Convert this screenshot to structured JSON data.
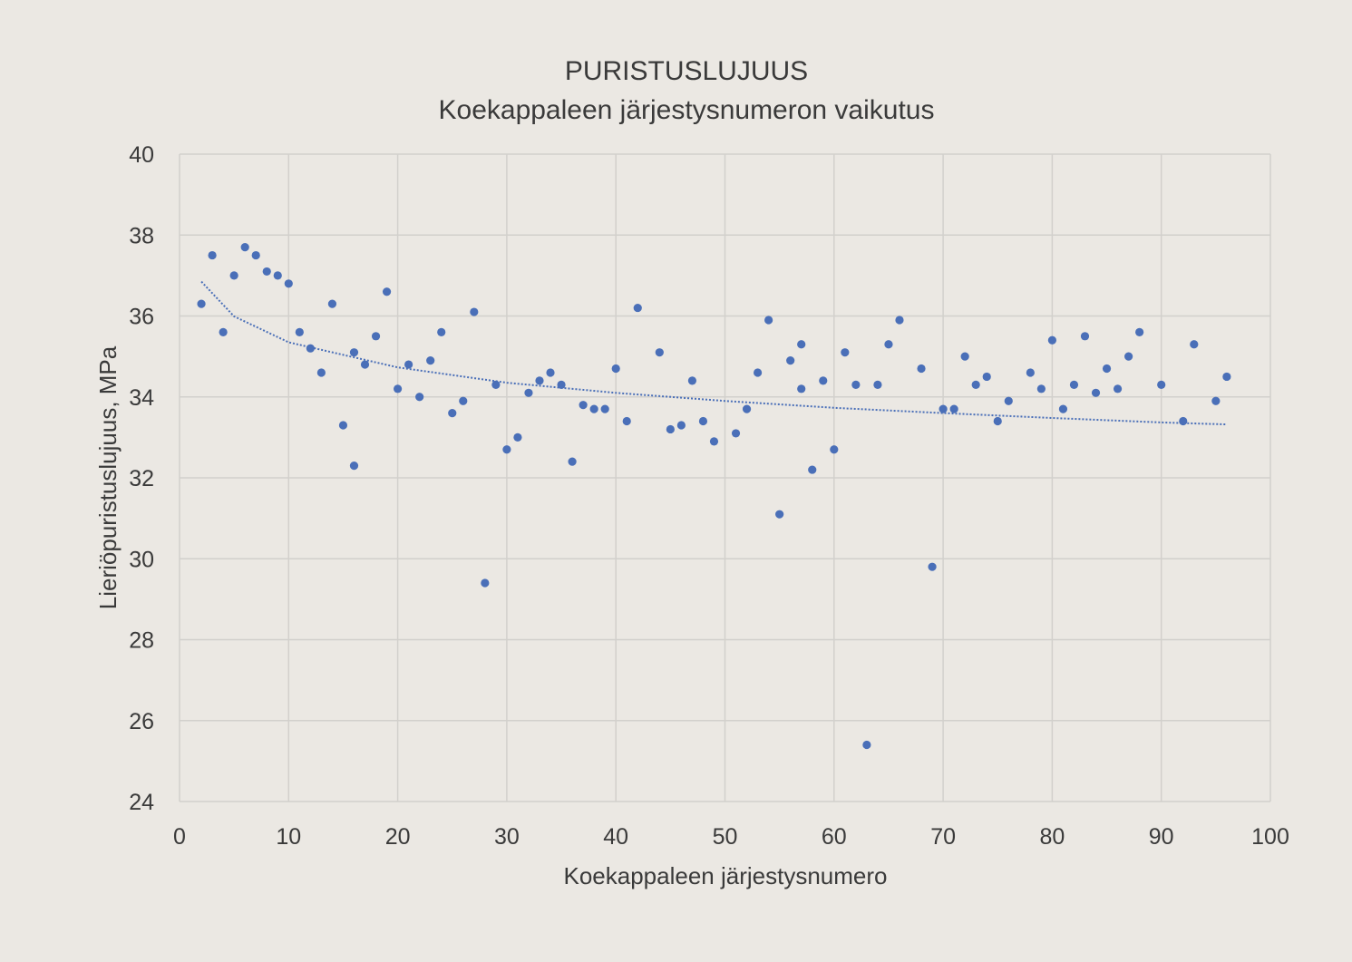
{
  "colors": {
    "background": "#ebe8e3",
    "plot_area": "#ebe8e3",
    "grid": "#d2d0cc",
    "axis_text": "#3a3a3a",
    "marker": "#4a6fb8",
    "trendline": "#4a6fb8"
  },
  "chart_data": {
    "type": "scatter",
    "title": "PURISTUSLUJUUS",
    "subtitle": "Koekappaleen järjestysnumeron vaikutus",
    "xlabel": "Koekappaleen järjestysnumero",
    "ylabel": "Lieriöpuristuslujuus, MPa",
    "xlim": [
      0,
      100
    ],
    "ylim": [
      24,
      40
    ],
    "xticks": [
      0,
      10,
      20,
      30,
      40,
      50,
      60,
      70,
      80,
      90,
      100
    ],
    "yticks": [
      24,
      26,
      28,
      30,
      32,
      34,
      36,
      38,
      40
    ],
    "grid": true,
    "legend": "none",
    "series": [
      {
        "marker": "circle",
        "points": [
          [
            2,
            36.3
          ],
          [
            3,
            37.5
          ],
          [
            4,
            35.6
          ],
          [
            5,
            37.0
          ],
          [
            6,
            37.7
          ],
          [
            7,
            37.5
          ],
          [
            8,
            37.1
          ],
          [
            9,
            37.0
          ],
          [
            10,
            36.8
          ],
          [
            11,
            35.6
          ],
          [
            12,
            35.2
          ],
          [
            13,
            34.6
          ],
          [
            14,
            36.3
          ],
          [
            15,
            33.3
          ],
          [
            16,
            35.1
          ],
          [
            16,
            32.3
          ],
          [
            17,
            34.8
          ],
          [
            18,
            35.5
          ],
          [
            19,
            36.6
          ],
          [
            20,
            34.2
          ],
          [
            21,
            34.8
          ],
          [
            22,
            34.0
          ],
          [
            23,
            34.9
          ],
          [
            24,
            35.6
          ],
          [
            25,
            33.6
          ],
          [
            26,
            33.9
          ],
          [
            27,
            36.1
          ],
          [
            28,
            29.4
          ],
          [
            29,
            34.3
          ],
          [
            30,
            32.7
          ],
          [
            31,
            33.0
          ],
          [
            32,
            34.1
          ],
          [
            33,
            34.4
          ],
          [
            34,
            34.6
          ],
          [
            35,
            34.3
          ],
          [
            36,
            32.4
          ],
          [
            37,
            33.8
          ],
          [
            38,
            33.7
          ],
          [
            39,
            33.7
          ],
          [
            40,
            34.7
          ],
          [
            41,
            33.4
          ],
          [
            42,
            36.2
          ],
          [
            44,
            35.1
          ],
          [
            45,
            33.2
          ],
          [
            46,
            33.3
          ],
          [
            47,
            34.4
          ],
          [
            48,
            33.4
          ],
          [
            49,
            32.9
          ],
          [
            51,
            33.1
          ],
          [
            52,
            33.7
          ],
          [
            53,
            34.6
          ],
          [
            54,
            35.9
          ],
          [
            55,
            31.1
          ],
          [
            56,
            34.9
          ],
          [
            57,
            35.3
          ],
          [
            57,
            34.2
          ],
          [
            58,
            32.2
          ],
          [
            59,
            34.4
          ],
          [
            60,
            32.7
          ],
          [
            61,
            35.1
          ],
          [
            62,
            34.3
          ],
          [
            63,
            25.4
          ],
          [
            64,
            34.3
          ],
          [
            65,
            35.3
          ],
          [
            66,
            35.9
          ],
          [
            68,
            34.7
          ],
          [
            69,
            29.8
          ],
          [
            70,
            33.7
          ],
          [
            71,
            33.7
          ],
          [
            72,
            35.0
          ],
          [
            73,
            34.3
          ],
          [
            74,
            34.5
          ],
          [
            75,
            33.4
          ],
          [
            76,
            33.9
          ],
          [
            78,
            34.6
          ],
          [
            79,
            34.2
          ],
          [
            80,
            35.4
          ],
          [
            81,
            33.7
          ],
          [
            82,
            34.3
          ],
          [
            83,
            35.5
          ],
          [
            84,
            34.1
          ],
          [
            85,
            34.7
          ],
          [
            86,
            34.2
          ],
          [
            87,
            35.0
          ],
          [
            88,
            35.6
          ],
          [
            90,
            34.3
          ],
          [
            92,
            33.4
          ],
          [
            93,
            35.3
          ],
          [
            95,
            33.9
          ],
          [
            96,
            34.5
          ]
        ]
      }
    ],
    "trendline": {
      "type": "logarithmic",
      "style": "dotted",
      "x_range": [
        2,
        96
      ],
      "samples": [
        [
          2,
          36.85
        ],
        [
          5,
          35.99
        ],
        [
          10,
          35.35
        ],
        [
          20,
          34.73
        ],
        [
          30,
          34.35
        ],
        [
          40,
          34.1
        ],
        [
          50,
          33.9
        ],
        [
          60,
          33.73
        ],
        [
          70,
          33.6
        ],
        [
          80,
          33.48
        ],
        [
          90,
          33.37
        ],
        [
          96,
          33.32
        ]
      ]
    }
  }
}
